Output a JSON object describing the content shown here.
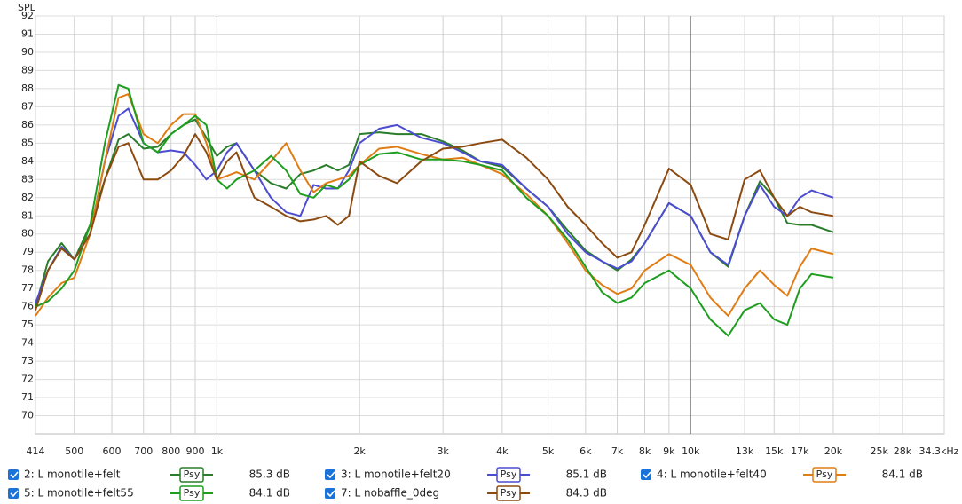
{
  "chart_data": {
    "type": "line",
    "y_label": "SPL",
    "log_x": true,
    "grid": true,
    "x": [
      414,
      440,
      470,
      500,
      540,
      580,
      620,
      650,
      700,
      750,
      800,
      850,
      900,
      950,
      1000,
      1050,
      1100,
      1200,
      1300,
      1400,
      1500,
      1600,
      1700,
      1800,
      1900,
      2000,
      2200,
      2400,
      2700,
      3000,
      3300,
      3600,
      4000,
      4500,
      5000,
      5500,
      6000,
      6500,
      7000,
      7500,
      8000,
      9000,
      10000,
      11000,
      12000,
      13000,
      14000,
      15000,
      16000,
      17000,
      18000,
      20000
    ],
    "xlim": [
      414,
      34300
    ],
    "xticks": [
      414,
      500,
      600,
      700,
      800,
      900,
      {
        "value": 1000,
        "label": "1k"
      },
      {
        "value": 2000,
        "label": "2k"
      },
      {
        "value": 3000,
        "label": "3k"
      },
      {
        "value": 4000,
        "label": "4k"
      },
      {
        "value": 5000,
        "label": "5k"
      },
      {
        "value": 6000,
        "label": "6k"
      },
      {
        "value": 7000,
        "label": "7k"
      },
      {
        "value": 8000,
        "label": "8k"
      },
      {
        "value": 9000,
        "label": "9k"
      },
      {
        "value": 10000,
        "label": "10k"
      },
      {
        "value": 13000,
        "label": "13k"
      },
      {
        "value": 15000,
        "label": "15k"
      },
      {
        "value": 17000,
        "label": "17k"
      },
      {
        "value": 20000,
        "label": "20k"
      },
      {
        "value": 25000,
        "label": "25k"
      },
      {
        "value": 28000,
        "label": "28k"
      },
      {
        "value": 34300,
        "label": "34.3kHz"
      }
    ],
    "ylim": [
      69,
      92
    ],
    "yticks": [
      70,
      71,
      72,
      73,
      74,
      75,
      76,
      77,
      78,
      79,
      80,
      81,
      82,
      83,
      84,
      85,
      86,
      87,
      88,
      89,
      90,
      91,
      92
    ],
    "series": [
      {
        "name": "2: L monotile+felt",
        "color": "#2a7d2a",
        "smoothing": "Psy",
        "level": "85.3 dB",
        "values": [
          76,
          78.5,
          79.5,
          78.6,
          80.5,
          83,
          85.2,
          85.5,
          84.7,
          84.8,
          85.5,
          86,
          86.3,
          85.3,
          84.3,
          84.8,
          85,
          83.5,
          82.8,
          82.5,
          83.3,
          83.5,
          83.8,
          83.5,
          83.8,
          85.5,
          85.6,
          85.5,
          85.5,
          85.1,
          84.6,
          84,
          83.7,
          82.5,
          81.5,
          80.2,
          79.1,
          78.5,
          78,
          78.6,
          79.5,
          81.7,
          81,
          79,
          78.2,
          81,
          82.9,
          82,
          80.6,
          80.5,
          80.5,
          80.1
        ]
      },
      {
        "name": "3: L monotile+felt20",
        "color": "#4c4cd0",
        "smoothing": "Psy",
        "level": "85.1 dB",
        "values": [
          76.2,
          78,
          79.3,
          78.6,
          80,
          84,
          86.5,
          86.9,
          85,
          84.5,
          84.6,
          84.5,
          83.8,
          83,
          83.5,
          84.5,
          85,
          83.5,
          82,
          81.2,
          81,
          82.7,
          82.5,
          82.5,
          83.5,
          85,
          85.8,
          86,
          85.3,
          85,
          84.5,
          84,
          83.8,
          82.5,
          81.5,
          80,
          79,
          78.5,
          78.1,
          78.5,
          79.5,
          81.7,
          81,
          79,
          78.3,
          81,
          82.7,
          81.5,
          81,
          82,
          82.4,
          82
        ]
      },
      {
        "name": "4: L monotile+felt40",
        "color": "#e07c14",
        "smoothing": "Psy",
        "level": "84.1 dB",
        "values": [
          75.5,
          76.5,
          77.3,
          77.6,
          80,
          84,
          87.5,
          87.7,
          85.5,
          85,
          86,
          86.6,
          86.6,
          85,
          83,
          83.2,
          83.4,
          83,
          84,
          85,
          83.5,
          82.3,
          82.8,
          83,
          83.2,
          83.8,
          84.7,
          84.8,
          84.4,
          84.1,
          84.2,
          83.8,
          83.3,
          82.2,
          81,
          79.5,
          78,
          77.2,
          76.7,
          77,
          78,
          78.9,
          78.3,
          76.5,
          75.5,
          77,
          78,
          77.2,
          76.6,
          78.2,
          79.2,
          78.9
        ]
      },
      {
        "name": "5: L monotile+felt55",
        "color": "#1e9e1e",
        "smoothing": "Psy",
        "level": "84.1 dB",
        "values": [
          76,
          76.3,
          77,
          78,
          80.5,
          85,
          88.2,
          88,
          85,
          84.5,
          85.5,
          86,
          86.5,
          86,
          83,
          82.5,
          83,
          83.5,
          84.3,
          83.5,
          82.2,
          82,
          82.7,
          82.5,
          83,
          83.8,
          84.4,
          84.5,
          84.1,
          84.1,
          84,
          83.8,
          83.5,
          82,
          81,
          79.7,
          78.2,
          76.8,
          76.2,
          76.5,
          77.3,
          78,
          77,
          75.3,
          74.4,
          75.8,
          76.2,
          75.3,
          75,
          77,
          77.8,
          77.6
        ]
      },
      {
        "name": "7: L nobaffle_0deg",
        "color": "#8b4a10",
        "smoothing": "Psy",
        "level": "84.3 dB",
        "values": [
          75.8,
          78,
          79.2,
          78.6,
          80,
          83,
          84.8,
          85,
          83,
          83,
          83.5,
          84.3,
          85.5,
          84.5,
          83,
          84,
          84.5,
          82,
          81.5,
          81,
          80.7,
          80.8,
          81,
          80.5,
          81,
          84,
          83.2,
          82.8,
          84,
          84.7,
          84.8,
          85,
          85.2,
          84.2,
          83,
          81.5,
          80.5,
          79.5,
          78.7,
          79,
          80.5,
          83.6,
          82.7,
          80,
          79.7,
          83,
          83.5,
          82,
          81,
          81.5,
          81.2,
          81
        ]
      }
    ]
  }
}
